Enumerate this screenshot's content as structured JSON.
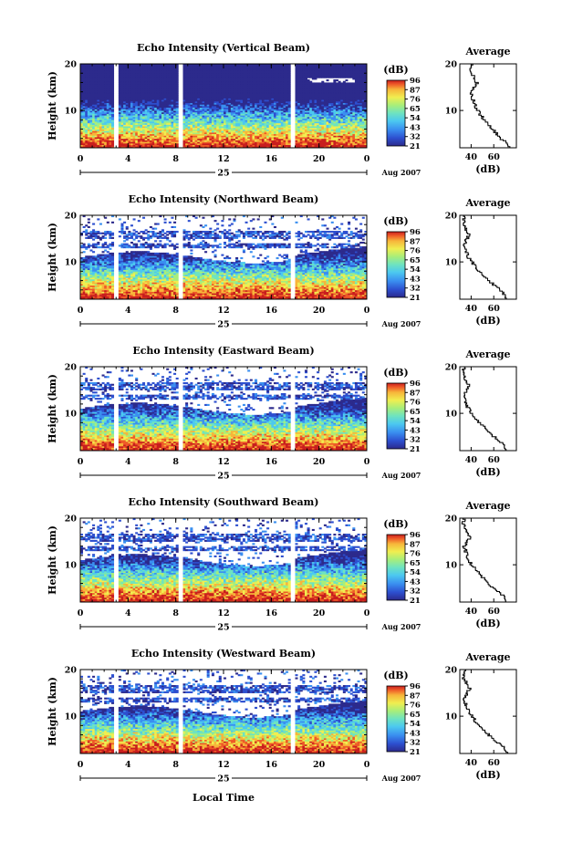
{
  "figure": {
    "xlabel": "Local Time",
    "ylabel": "Height (km)",
    "colorbar_title": "(dB)",
    "colorbar_ticks": [
      "96",
      "87",
      "76",
      "65",
      "54",
      "43",
      "32",
      "21"
    ],
    "avg_title": "Average",
    "avg_xlabel": "(dB)",
    "avg_ticks": [
      "40",
      "60"
    ],
    "x_ticks": [
      "0",
      "4",
      "8",
      "12",
      "16",
      "20",
      "0"
    ],
    "day_label": "25",
    "date_label": "Aug 2007",
    "y_ticks": [
      "20",
      "10"
    ],
    "colors": [
      "#2c2a8c",
      "#2d4fcf",
      "#3a8ff0",
      "#4cc8f0",
      "#6ee3c0",
      "#a8ee7a",
      "#f0ee50",
      "#f7b53a",
      "#ee5a28",
      "#c81e1e"
    ]
  },
  "chart_data": [
    {
      "type": "heatmap",
      "title": "Echo Intensity (Vertical Beam)",
      "xlabel": "Local Time",
      "ylabel": "Height (km)",
      "xlim": [
        0,
        24
      ],
      "ylim": [
        2,
        20
      ],
      "colorbar_range_dB": [
        21,
        96
      ],
      "data_gaps_hours": [
        [
          2.9,
          3.2
        ],
        [
          8.3,
          8.6
        ],
        [
          17.7,
          18.0
        ]
      ],
      "profile": {
        "height_km": [
          2,
          3,
          4,
          5,
          6,
          7,
          8,
          9,
          10,
          11,
          12,
          13,
          14,
          15,
          16,
          17,
          18,
          19,
          20
        ],
        "dB": [
          75,
          72,
          67,
          63,
          59,
          56,
          52,
          49,
          46,
          44,
          42,
          41,
          40,
          42,
          45,
          43,
          41,
          40,
          41
        ]
      }
    },
    {
      "type": "heatmap",
      "title": "Echo Intensity (Northward Beam)",
      "xlabel": "Local Time",
      "ylabel": "Height (km)",
      "xlim": [
        0,
        24
      ],
      "ylim": [
        2,
        20
      ],
      "colorbar_range_dB": [
        21,
        96
      ],
      "data_gaps_hours": [
        [
          2.9,
          3.2
        ],
        [
          8.3,
          8.6
        ],
        [
          17.7,
          18.0
        ]
      ],
      "profile": {
        "height_km": [
          2,
          3,
          4,
          5,
          6,
          7,
          8,
          9,
          10,
          11,
          12,
          13,
          14,
          15,
          16,
          17,
          18,
          19,
          20
        ],
        "dB": [
          72,
          70,
          66,
          61,
          56,
          52,
          48,
          44,
          41,
          38,
          36,
          35,
          34,
          36,
          39,
          36,
          34,
          33,
          34
        ]
      }
    },
    {
      "type": "heatmap",
      "title": "Echo Intensity (Eastward Beam)",
      "xlabel": "Local Time",
      "ylabel": "Height (km)",
      "xlim": [
        0,
        24
      ],
      "ylim": [
        2,
        20
      ],
      "colorbar_range_dB": [
        21,
        96
      ],
      "data_gaps_hours": [
        [
          2.9,
          3.2
        ],
        [
          8.3,
          8.6
        ],
        [
          17.7,
          18.0
        ]
      ],
      "profile": {
        "height_km": [
          2,
          3,
          4,
          5,
          6,
          7,
          8,
          9,
          10,
          11,
          12,
          13,
          14,
          15,
          16,
          17,
          18,
          19,
          20
        ],
        "dB": [
          72,
          70,
          66,
          61,
          56,
          52,
          48,
          44,
          41,
          38,
          36,
          35,
          34,
          36,
          39,
          36,
          34,
          33,
          34
        ]
      }
    },
    {
      "type": "heatmap",
      "title": "Echo Intensity (Southward Beam)",
      "xlabel": "Local Time",
      "ylabel": "Height (km)",
      "xlim": [
        0,
        24
      ],
      "ylim": [
        2,
        20
      ],
      "colorbar_range_dB": [
        21,
        96
      ],
      "data_gaps_hours": [
        [
          2.9,
          3.2
        ],
        [
          8.3,
          8.6
        ],
        [
          17.7,
          18.0
        ]
      ],
      "profile": {
        "height_km": [
          2,
          3,
          4,
          5,
          6,
          7,
          8,
          9,
          10,
          11,
          12,
          13,
          14,
          15,
          16,
          17,
          18,
          19,
          20
        ],
        "dB": [
          72,
          70,
          66,
          61,
          56,
          52,
          48,
          44,
          41,
          38,
          36,
          35,
          34,
          36,
          39,
          36,
          34,
          33,
          34
        ]
      }
    },
    {
      "type": "heatmap",
      "title": "Echo Intensity (Westward Beam)",
      "xlabel": "Local Time",
      "ylabel": "Height (km)",
      "xlim": [
        0,
        24
      ],
      "ylim": [
        2,
        20
      ],
      "colorbar_range_dB": [
        21,
        96
      ],
      "data_gaps_hours": [
        [
          2.9,
          3.2
        ],
        [
          8.3,
          8.6
        ],
        [
          17.7,
          18.0
        ]
      ],
      "profile": {
        "height_km": [
          2,
          3,
          4,
          5,
          6,
          7,
          8,
          9,
          10,
          11,
          12,
          13,
          14,
          15,
          16,
          17,
          18,
          19,
          20
        ],
        "dB": [
          72,
          70,
          66,
          61,
          56,
          52,
          48,
          44,
          41,
          38,
          36,
          35,
          34,
          36,
          39,
          36,
          34,
          33,
          34
        ]
      }
    }
  ]
}
